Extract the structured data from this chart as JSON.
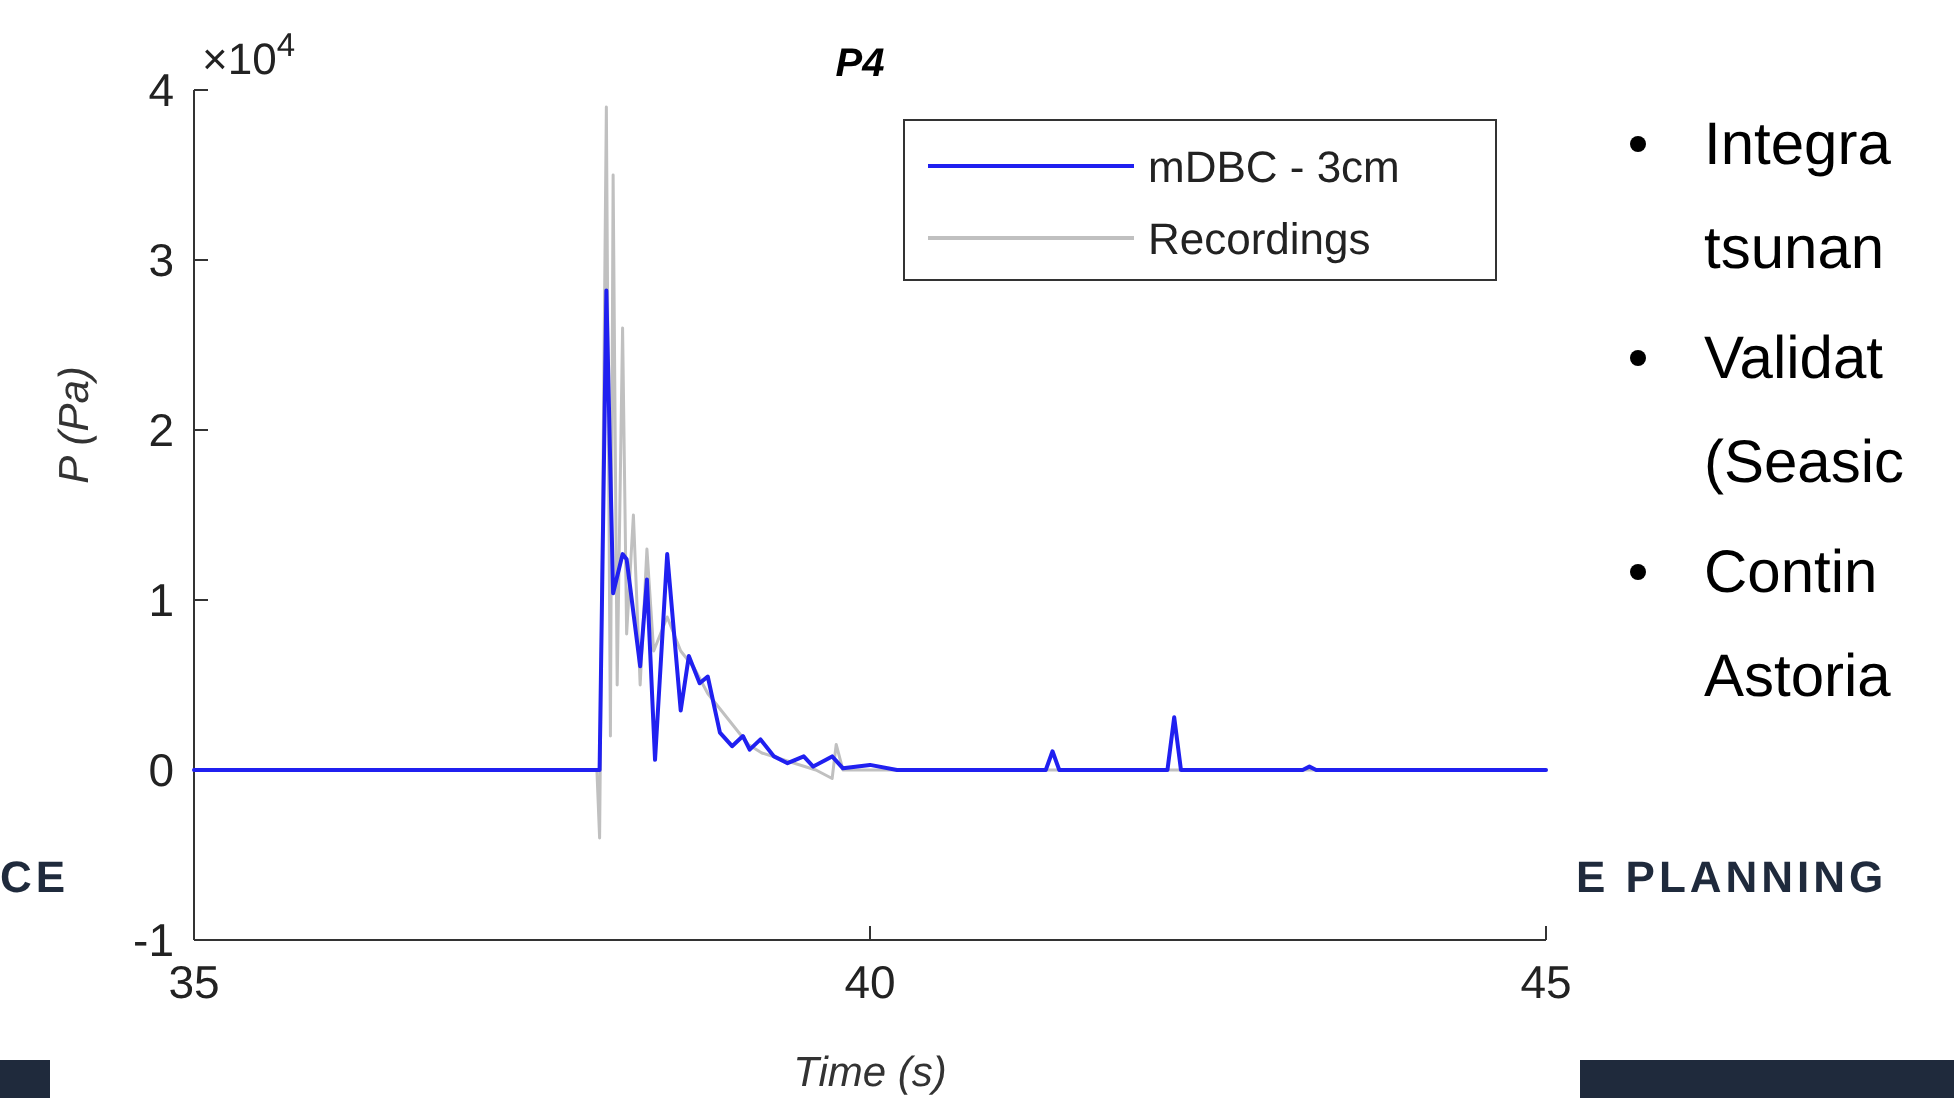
{
  "chart_data": {
    "type": "line",
    "title": "P4",
    "xlabel": "Time (s)",
    "ylabel": "P (Pa)",
    "xlim": [
      35,
      45
    ],
    "xticks": [
      35,
      40,
      45
    ],
    "ylim": [
      -1,
      4
    ],
    "yticks": [
      -1,
      0,
      1,
      2,
      3,
      4
    ],
    "grid": false,
    "legend": "top right",
    "line_style": "solid",
    "series": [
      {
        "name": "mDBC - 3cm",
        "color": "#2020f0",
        "x": [
          35,
          38.0,
          38.05,
          38.1,
          38.17,
          38.2,
          38.3,
          38.35,
          38.41,
          38.5,
          38.6,
          38.66,
          38.74,
          38.8,
          38.89,
          38.98,
          39.06,
          39.11,
          39.19,
          39.29,
          39.39,
          39.51,
          39.58,
          39.72,
          39.8,
          40.0,
          40.2,
          41.3,
          41.35,
          41.4,
          42.2,
          42.25,
          42.3,
          43.2,
          43.25,
          43.3,
          45
        ],
        "values": [
          0,
          0,
          2.82,
          1.04,
          1.27,
          1.24,
          0.61,
          1.12,
          0.06,
          1.27,
          0.35,
          0.67,
          0.51,
          0.55,
          0.22,
          0.14,
          0.2,
          0.12,
          0.18,
          0.08,
          0.04,
          0.08,
          0.02,
          0.08,
          0.01,
          0.03,
          0,
          0,
          0.11,
          0,
          0,
          0.31,
          0,
          0,
          0.02,
          0,
          0
        ]
      },
      {
        "name": "Recordings",
        "color": "#c0c0c0",
        "x": [
          35,
          37.98,
          38.0,
          38.05,
          38.08,
          38.1,
          38.13,
          38.17,
          38.2,
          38.25,
          38.3,
          38.35,
          38.4,
          38.5,
          38.6,
          38.7,
          38.8,
          38.9,
          39.0,
          39.1,
          39.2,
          39.4,
          39.6,
          39.72,
          39.75,
          39.8,
          40.0,
          45
        ],
        "values": [
          0,
          0,
          -0.4,
          3.9,
          0.2,
          3.5,
          0.5,
          2.6,
          0.8,
          1.5,
          0.5,
          1.3,
          0.7,
          0.9,
          0.7,
          0.6,
          0.45,
          0.35,
          0.25,
          0.15,
          0.1,
          0.05,
          0,
          -0.05,
          0.15,
          0,
          0,
          0
        ]
      }
    ],
    "annotations": [
      "×10$^{4}$",
      "Integra",
      "tsunan",
      "Validat",
      "(Seasic",
      "Contin",
      "Astoria",
      "CE",
      "E PLANNING"
    ]
  }
}
